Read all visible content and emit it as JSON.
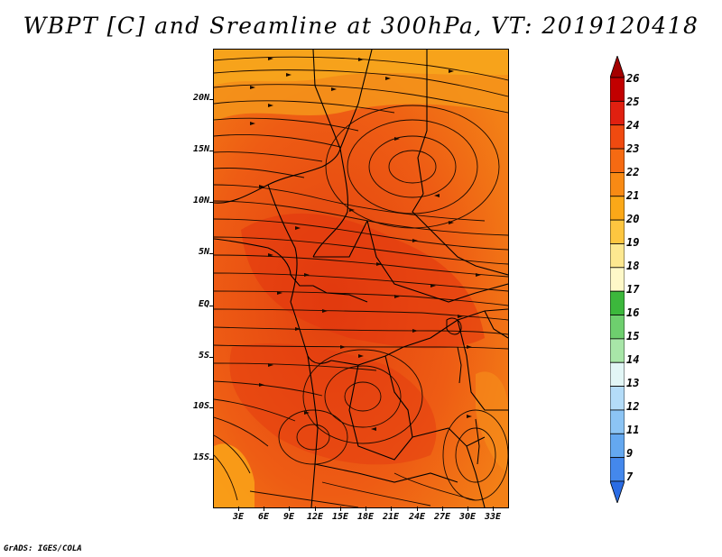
{
  "title": "WBPT [C] and Sreamline at 300hPa, VT: 2019120418",
  "credit": "GrADS: IGES/COLA",
  "map": {
    "lat_labels": [
      "20N",
      "15N",
      "10N",
      "5N",
      "EQ",
      "5S",
      "10S",
      "15S"
    ],
    "lon_labels": [
      "3E",
      "6E",
      "9E",
      "12E",
      "15E",
      "18E",
      "21E",
      "24E",
      "27E",
      "30E",
      "33E"
    ],
    "lon_range": [
      0,
      34.5
    ],
    "lat_range": [
      -19.5,
      24
    ],
    "field": "Wet-bulb potential temperature",
    "field_units": "C",
    "level": "300hPa",
    "valid_time": "2019120418"
  },
  "colorbar": {
    "levels": [
      "26",
      "25",
      "24",
      "23",
      "22",
      "21",
      "20",
      "19",
      "18",
      "17",
      "16",
      "15",
      "14",
      "13",
      "12",
      "11",
      "9",
      "7"
    ],
    "colors": [
      "#a40000",
      "#c20000",
      "#e02010",
      "#f04a10",
      "#f56a12",
      "#f88a14",
      "#fba818",
      "#fdc640",
      "#fde890",
      "#fef8c8",
      "#3cb83c",
      "#6ecf6e",
      "#a8e6a8",
      "#e2f6f6",
      "#b4dcf8",
      "#8cc4f4",
      "#64a8f0",
      "#4488ec",
      "#2a6ce4"
    ]
  }
}
